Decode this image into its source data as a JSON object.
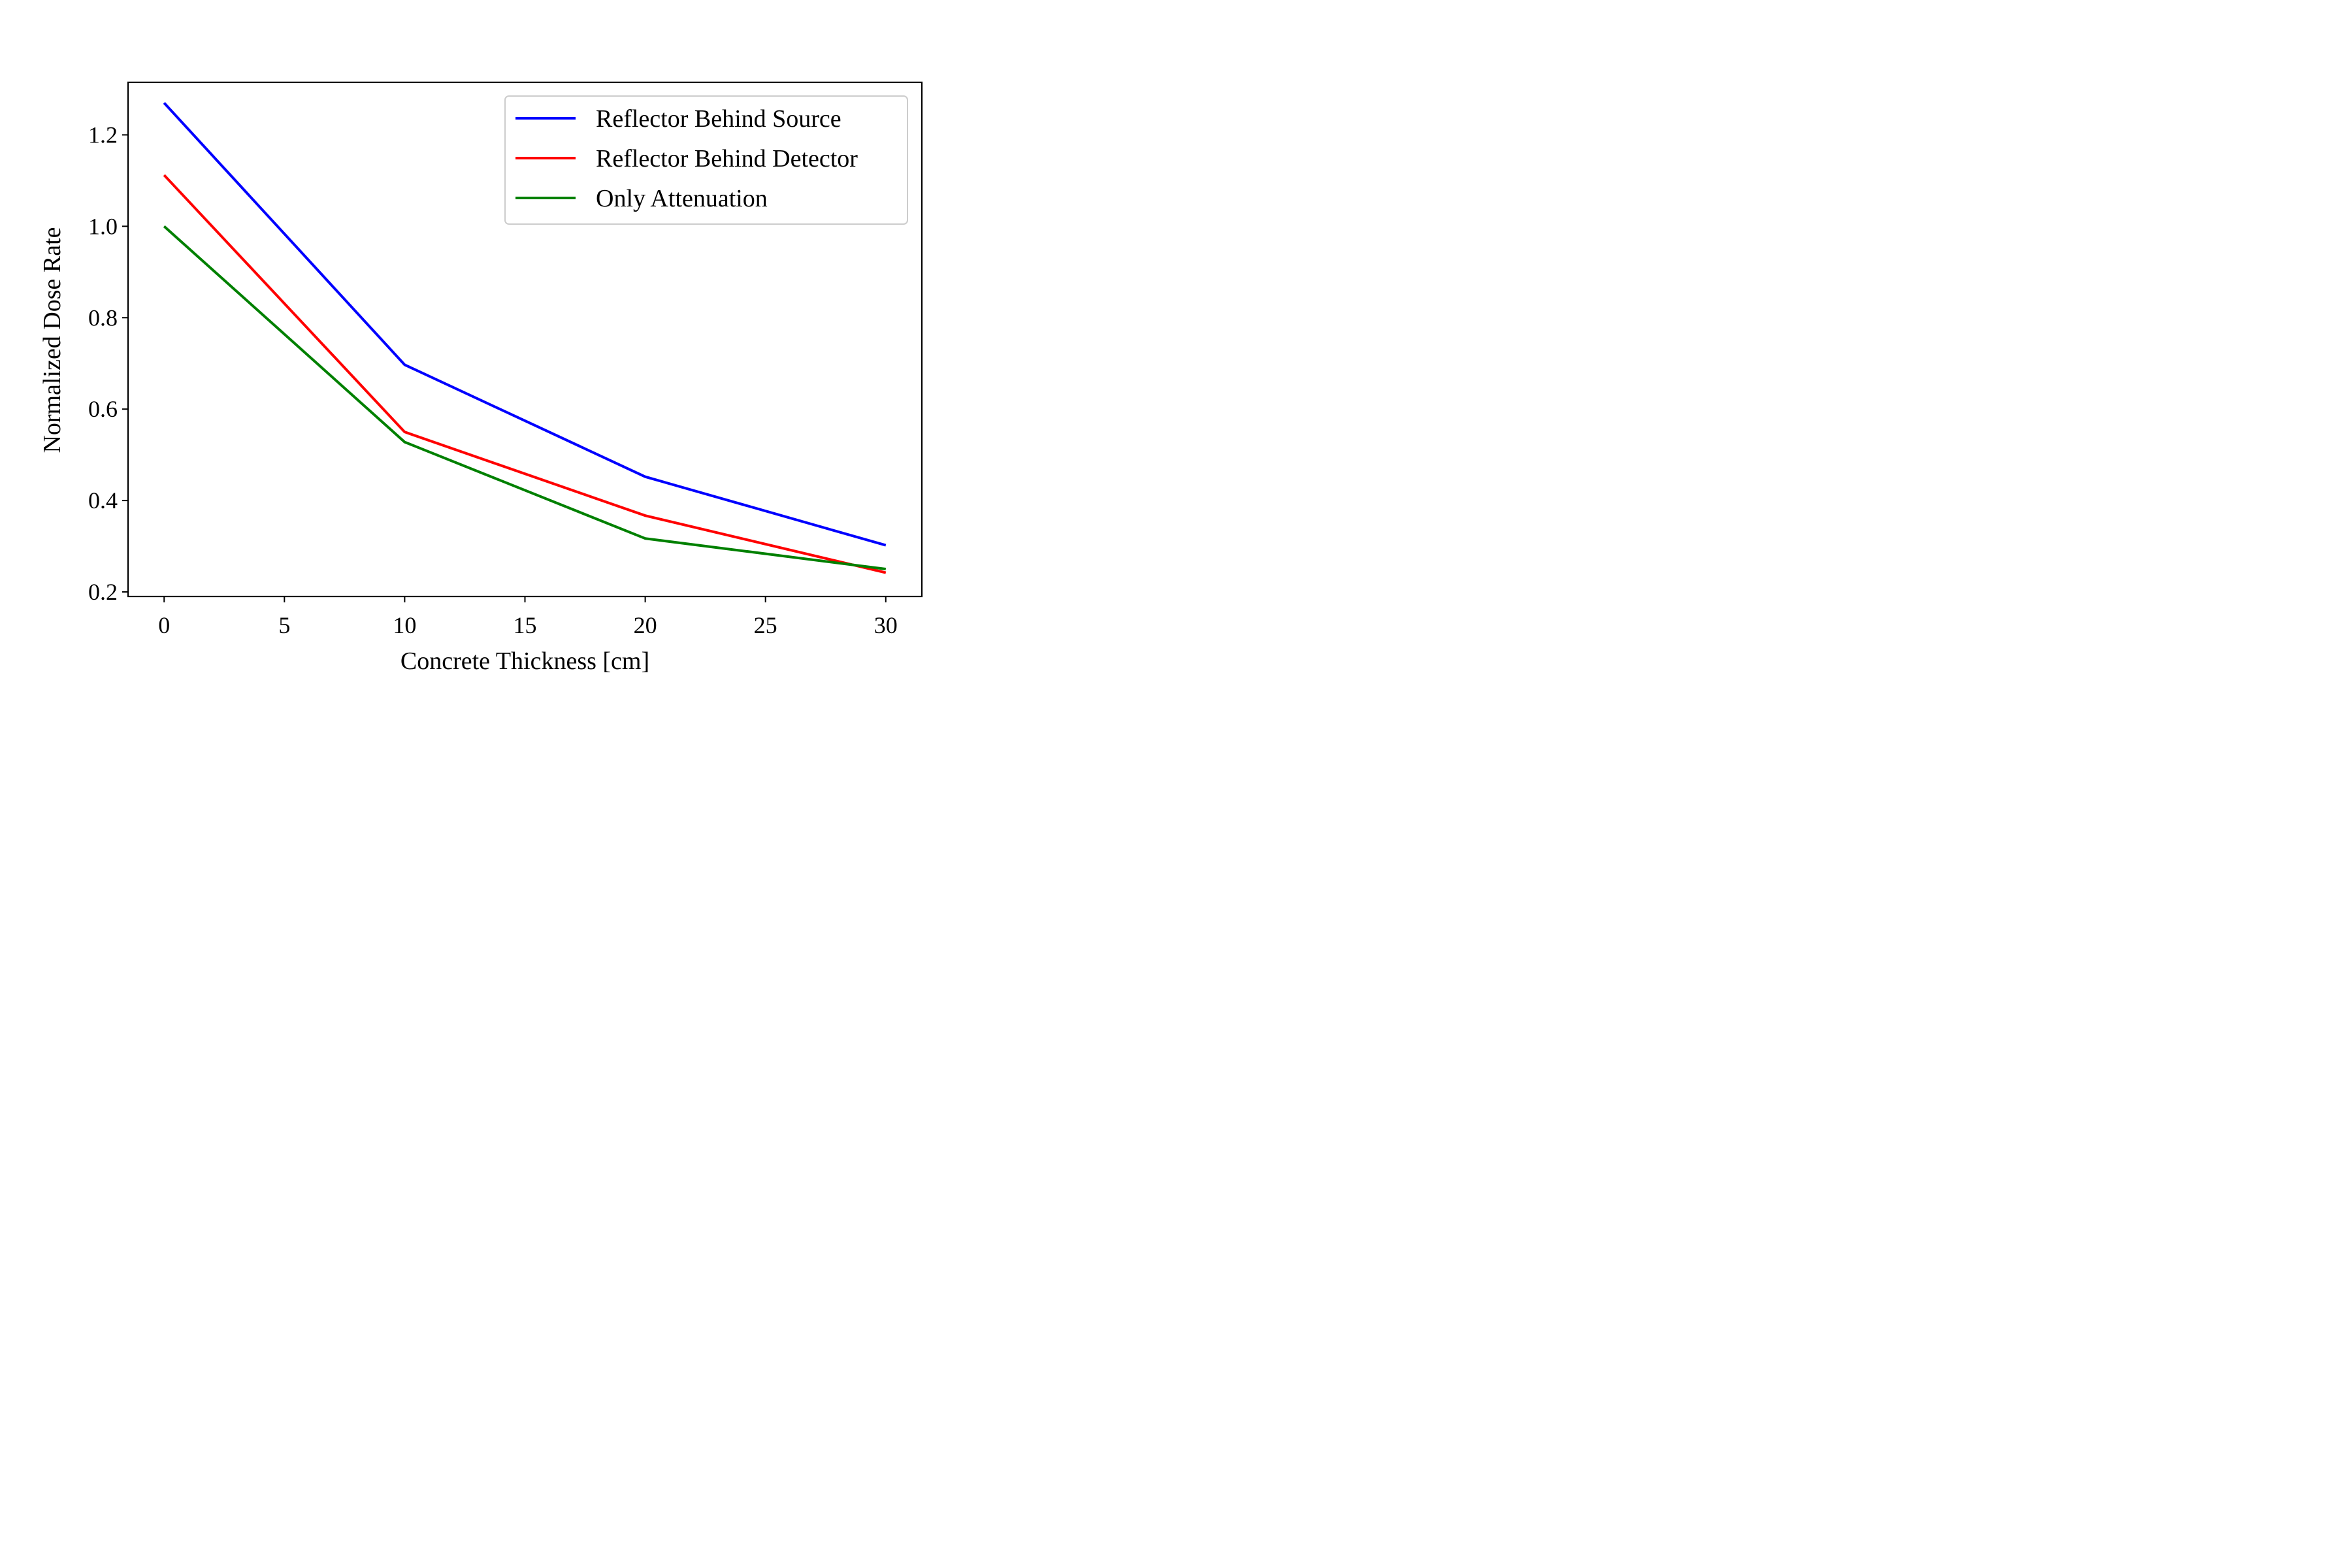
{
  "chart_data": {
    "type": "line",
    "title": "",
    "xlabel": "Concrete Thickness [cm]",
    "ylabel": "Normalized Dose Rate",
    "x": [
      0,
      10,
      20,
      30
    ],
    "xlim": [
      -1.5,
      31.5
    ],
    "ylim": [
      0.19,
      1.315
    ],
    "xticks": [
      0,
      5,
      10,
      15,
      20,
      25,
      30
    ],
    "yticks": [
      0.2,
      0.4,
      0.6,
      0.8,
      1.0,
      1.2
    ],
    "xtick_labels": [
      "0",
      "5",
      "10",
      "15",
      "20",
      "25",
      "30"
    ],
    "ytick_labels": [
      "0.2",
      "0.4",
      "0.6",
      "0.8",
      "1.0",
      "1.2"
    ],
    "grid": false,
    "legend_position": "top-right",
    "series": [
      {
        "name": "Reflector Behind Source",
        "color": "#0000ff",
        "values": [
          1.27,
          0.697,
          0.452,
          0.302
        ]
      },
      {
        "name": "Reflector Behind Detector",
        "color": "#ff0000",
        "values": [
          1.112,
          0.55,
          0.367,
          0.242
        ]
      },
      {
        "name": "Only Attenuation",
        "color": "#008000",
        "values": [
          1.0,
          0.528,
          0.317,
          0.25
        ]
      }
    ]
  }
}
